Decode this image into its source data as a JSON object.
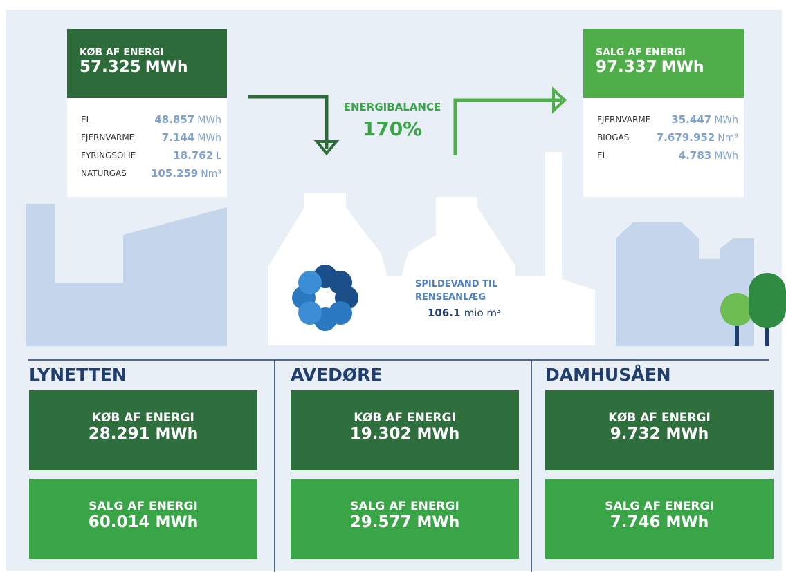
{
  "purchase": {
    "title": "KØB AF ENERGI",
    "value": "57.325",
    "unit": "MWh",
    "items": [
      {
        "label": "EL",
        "value": "48.857",
        "unit": "MWh"
      },
      {
        "label": "FJERNVARME",
        "value": "7.144",
        "unit": "MWh"
      },
      {
        "label": "FYRINGSOLIE",
        "value": "18.762",
        "unit": "L"
      },
      {
        "label": "NATURGAS",
        "value": "105.259",
        "unit": "Nm³"
      }
    ]
  },
  "balance": {
    "title": "ENERGIBALANCE",
    "value": "170%"
  },
  "sale": {
    "title": "SALG AF ENERGI",
    "value": "97.337",
    "unit": "MWh",
    "items": [
      {
        "label": "FJERNVARME",
        "value": "35.447",
        "unit": "MWh"
      },
      {
        "label": "BIOGAS",
        "value": "7.679.952",
        "unit": "Nm³"
      },
      {
        "label": "EL",
        "value": "4.783",
        "unit": "MWh"
      }
    ]
  },
  "wastewater": {
    "label_lines": [
      "SPILDEVAND TIL",
      "RENSEANLÆG"
    ],
    "value": "106.1",
    "unit": "mio m³"
  },
  "plants": [
    {
      "name": "LYNETTEN",
      "purchase": {
        "title": "KØB AF ENERGI",
        "value": "28.291",
        "unit": "MWh"
      },
      "sale": {
        "title": "SALG AF ENERGI",
        "value": "60.014",
        "unit": "MWh"
      }
    },
    {
      "name": "AVEDØRE",
      "purchase": {
        "title": "KØB AF ENERGI",
        "value": "19.302",
        "unit": "MWh"
      },
      "sale": {
        "title": "SALG AF ENERGI",
        "value": "29.577",
        "unit": "MWh"
      }
    },
    {
      "name": "DAMHUSÅEN",
      "purchase": {
        "title": "KØB AF ENERGI",
        "value": "9.732",
        "unit": "MWh"
      },
      "sale": {
        "title": "SALG AF ENERGI",
        "value": "7.746",
        "unit": "MWh"
      }
    }
  ]
}
